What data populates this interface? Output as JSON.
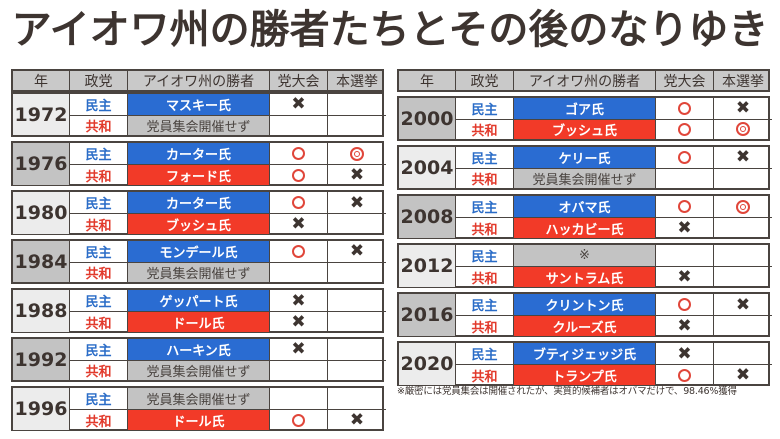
{
  "title": "アイオワ州の勝者たちとその後のなりゆき",
  "headers": [
    "年",
    "政党",
    "アイオワ州の勝者",
    "党大会",
    "本選挙"
  ],
  "parties": {
    "dem": "民主",
    "rep": "共和"
  },
  "legend": {
    "x": "✖",
    "o": "○",
    "dbl": "◎"
  },
  "left_blocks": [
    {
      "year": "1972",
      "shade": "light",
      "dem": {
        "winner": "マスキー氏",
        "type": "dem",
        "convention": "x",
        "general": ""
      },
      "rep": {
        "winner": "党員集会開催せず",
        "type": "none",
        "convention": "",
        "general": ""
      }
    },
    {
      "year": "1976",
      "shade": "dark",
      "dem": {
        "winner": "カーター氏",
        "type": "dem",
        "convention": "o",
        "general": "dbl"
      },
      "rep": {
        "winner": "フォード氏",
        "type": "rep",
        "convention": "o",
        "general": "x"
      }
    },
    {
      "year": "1980",
      "shade": "light",
      "dem": {
        "winner": "カーター氏",
        "type": "dem",
        "convention": "o",
        "general": "x"
      },
      "rep": {
        "winner": "ブッシュ氏",
        "type": "rep",
        "convention": "x",
        "general": ""
      }
    },
    {
      "year": "1984",
      "shade": "dark",
      "dem": {
        "winner": "モンデール氏",
        "type": "dem",
        "convention": "o",
        "general": "x"
      },
      "rep": {
        "winner": "党員集会開催せず",
        "type": "none",
        "convention": "",
        "general": ""
      }
    },
    {
      "year": "1988",
      "shade": "light",
      "dem": {
        "winner": "ゲッパート氏",
        "type": "dem",
        "convention": "x",
        "general": ""
      },
      "rep": {
        "winner": "ドール氏",
        "type": "rep",
        "convention": "x",
        "general": ""
      }
    },
    {
      "year": "1992",
      "shade": "dark",
      "dem": {
        "winner": "ハーキン氏",
        "type": "dem",
        "convention": "x",
        "general": ""
      },
      "rep": {
        "winner": "党員集会開催せず",
        "type": "none",
        "convention": "",
        "general": ""
      }
    },
    {
      "year": "1996",
      "shade": "light",
      "dem": {
        "winner": "党員集会開催せず",
        "type": "none",
        "convention": "",
        "general": ""
      },
      "rep": {
        "winner": "ドール氏",
        "type": "rep",
        "convention": "o",
        "general": "x"
      }
    }
  ],
  "right_blocks": [
    {
      "year": "2000",
      "shade": "dark",
      "dem": {
        "winner": "ゴア氏",
        "type": "dem",
        "convention": "o",
        "general": "x"
      },
      "rep": {
        "winner": "ブッシュ氏",
        "type": "rep",
        "convention": "o",
        "general": "dbl"
      }
    },
    {
      "year": "2004",
      "shade": "light",
      "dem": {
        "winner": "ケリー氏",
        "type": "dem",
        "convention": "o",
        "general": "x"
      },
      "rep": {
        "winner": "党員集会開催せず",
        "type": "none",
        "convention": "",
        "general": ""
      }
    },
    {
      "year": "2008",
      "shade": "dark",
      "dem": {
        "winner": "オバマ氏",
        "type": "dem",
        "convention": "o",
        "general": "dbl"
      },
      "rep": {
        "winner": "ハッカビー氏",
        "type": "rep",
        "convention": "x",
        "general": ""
      }
    },
    {
      "year": "2012",
      "shade": "light",
      "dem": {
        "winner": "※",
        "type": "none",
        "convention": "",
        "general": ""
      },
      "rep": {
        "winner": "サントラム氏",
        "type": "rep",
        "convention": "x",
        "general": ""
      }
    },
    {
      "year": "2016",
      "shade": "dark",
      "dem": {
        "winner": "クリントン氏",
        "type": "dem",
        "convention": "o",
        "general": "x"
      },
      "rep": {
        "winner": "クルーズ氏",
        "type": "rep",
        "convention": "x",
        "general": ""
      }
    },
    {
      "year": "2020",
      "shade": "light",
      "dem": {
        "winner": "ブティジェッジ氏",
        "type": "dem",
        "convention": "x",
        "general": ""
      },
      "rep": {
        "winner": "トランプ氏",
        "type": "rep",
        "convention": "o",
        "general": "x"
      }
    }
  ],
  "footnote": "※厳密には党員集会は開催されたが、実質的候補者はオバマだけで、98.46%獲得",
  "colors": {
    "dem_bg": "#2a6cd2",
    "rep_bg": "#f23a28",
    "none_bg": "#c3c3c3",
    "dem_text": "#2a6cc7",
    "rep_text": "#e23a2c",
    "mark_red": "#e0463a",
    "text_dark": "#3d3430"
  }
}
